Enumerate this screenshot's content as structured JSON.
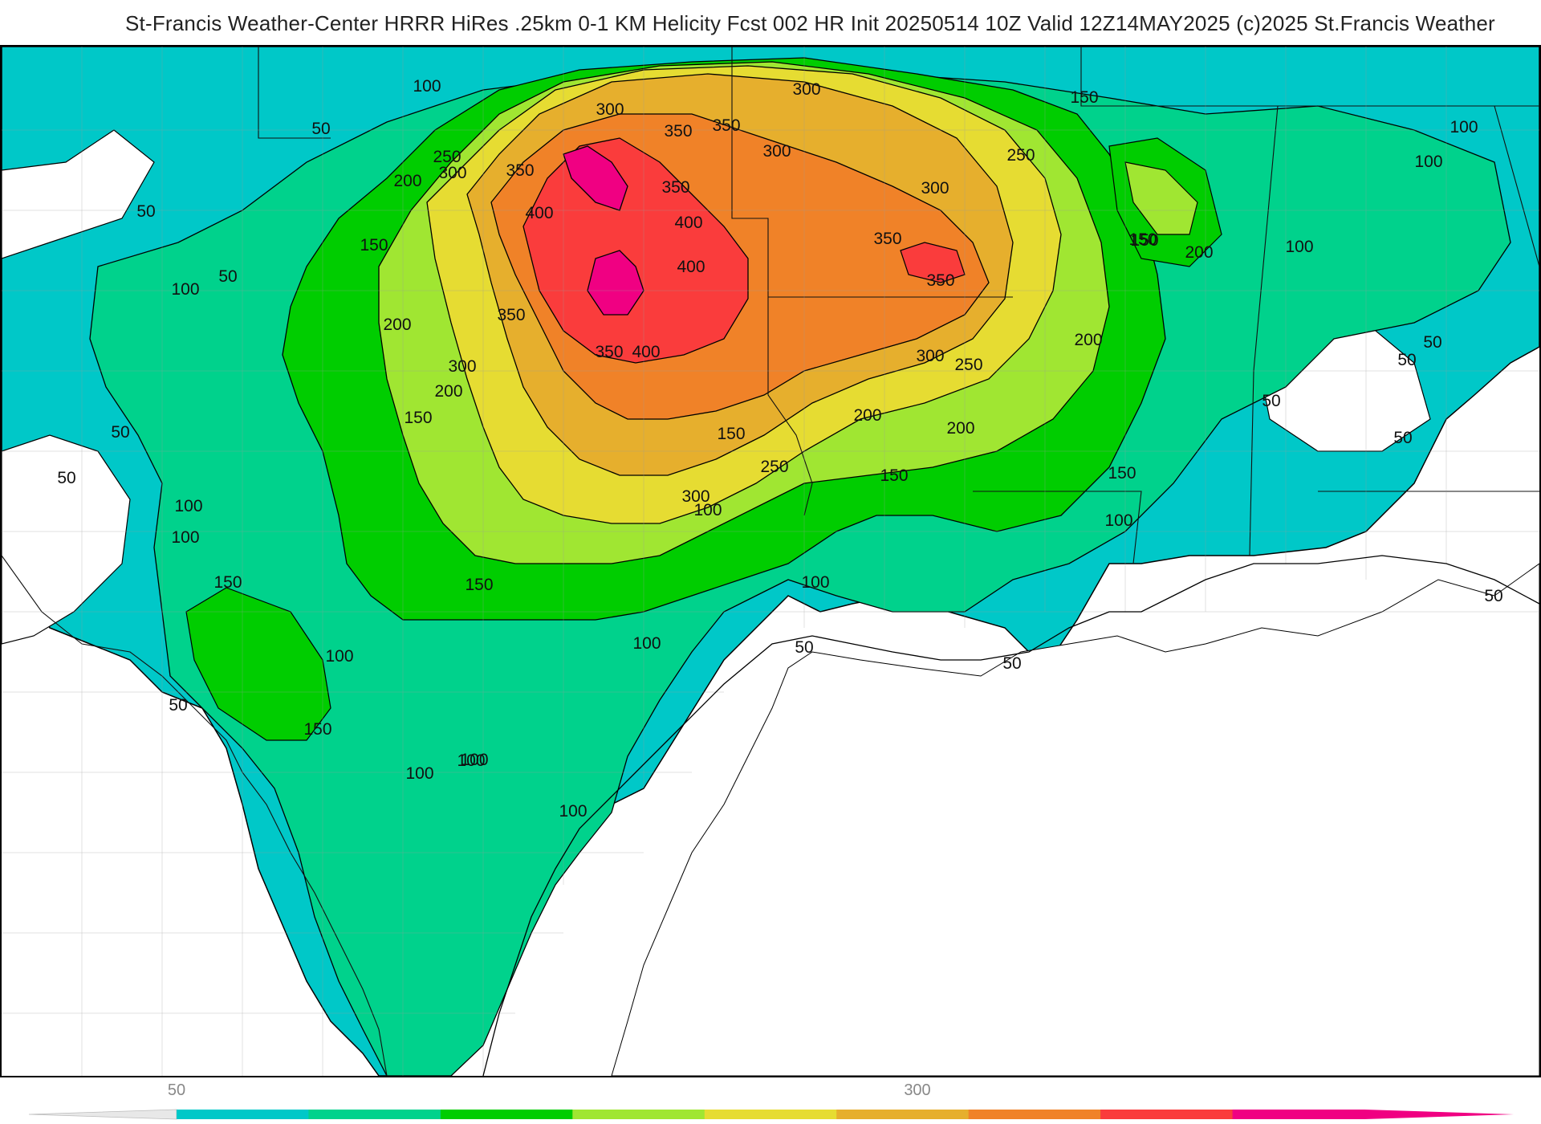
{
  "header": {
    "title": "St-Francis Weather-Center HRRR HiRes .25km 0-1 KM Helicity Fcst 002 HR Init 20250514 10Z  Valid 12Z14MAY2025    (c)2025 St.Francis Weather"
  },
  "legend": {
    "tick_labels": [
      "50",
      "300"
    ],
    "colors": [
      "#00c8c8",
      "#00d28c",
      "#00cd00",
      "#a0e632",
      "#e6dc32",
      "#e6af2d",
      "#f08228",
      "#fa3c3c",
      "#f00082"
    ]
  },
  "contour_labels": [
    "100",
    "50",
    "50",
    "300",
    "150",
    "100",
    "300",
    "350",
    "350",
    "300",
    "250",
    "300",
    "350",
    "350",
    "300",
    "250",
    "150",
    "100",
    "100",
    "200",
    "150",
    "200",
    "200",
    "400",
    "400",
    "400",
    "350",
    "350",
    "150",
    "100",
    "50",
    "200",
    "350",
    "400",
    "350",
    "200",
    "300",
    "250",
    "150",
    "300",
    "200",
    "50",
    "50",
    "50",
    "100",
    "50",
    "150",
    "200",
    "250",
    "300",
    "150",
    "100",
    "100",
    "100",
    "150",
    "150",
    "150",
    "100",
    "100",
    "100",
    "50",
    "50",
    "50",
    "150",
    "100",
    "100",
    "100",
    "50",
    "50",
    "100",
    "50"
  ]
}
